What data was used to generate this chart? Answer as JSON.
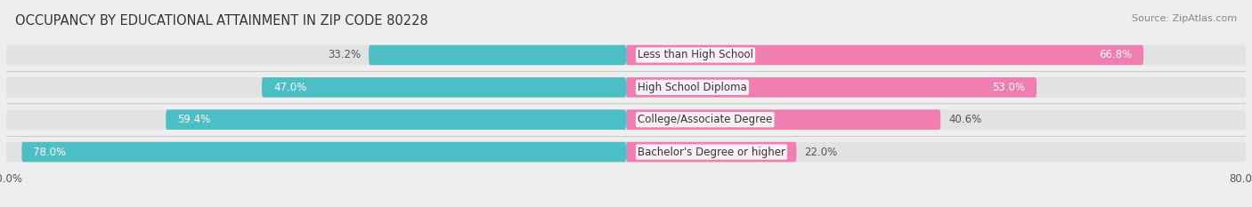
{
  "title": "OCCUPANCY BY EDUCATIONAL ATTAINMENT IN ZIP CODE 80228",
  "source": "Source: ZipAtlas.com",
  "categories": [
    "Less than High School",
    "High School Diploma",
    "College/Associate Degree",
    "Bachelor's Degree or higher"
  ],
  "owner_values": [
    33.2,
    47.0,
    59.4,
    78.0
  ],
  "renter_values": [
    66.8,
    53.0,
    40.6,
    22.0
  ],
  "owner_color": "#4BBEC6",
  "renter_color": "#F07EB0",
  "background_color": "#eeeeee",
  "bar_bg_color": "#e2e2e2",
  "xlim_left": -80.0,
  "xlim_right": 80.0,
  "title_fontsize": 10.5,
  "source_fontsize": 8,
  "bar_label_fontsize": 8.5,
  "cat_label_fontsize": 8.5,
  "legend_fontsize": 8.5,
  "bar_height": 0.62,
  "bar_gap": 1.0,
  "row_sep_color": "#cccccc"
}
